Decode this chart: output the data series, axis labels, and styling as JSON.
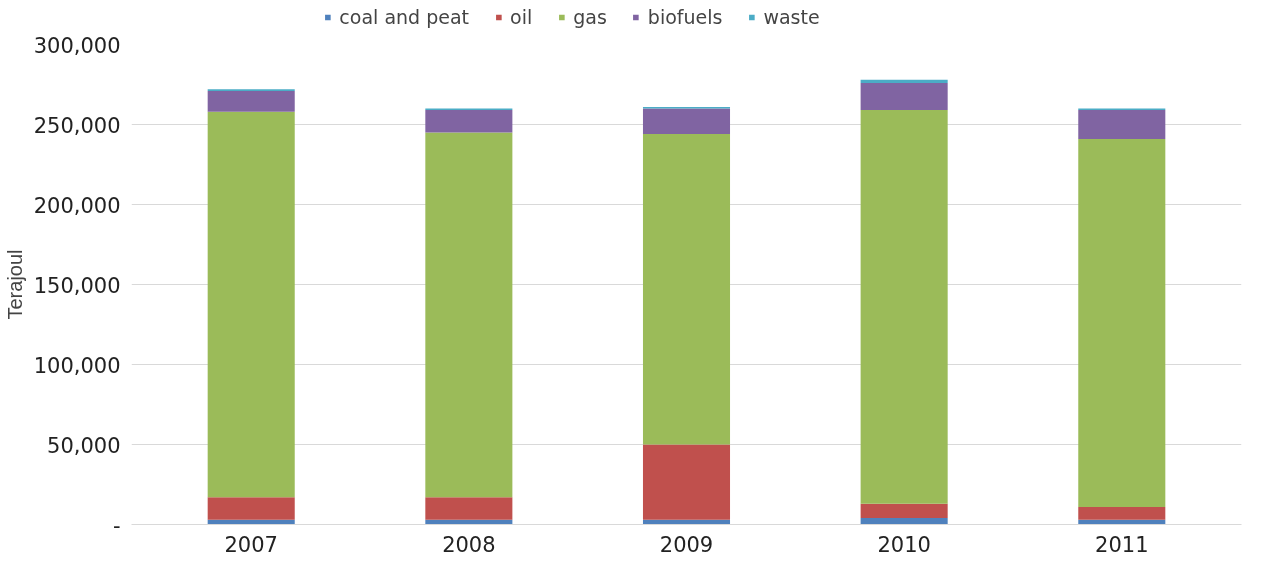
{
  "chart_data": {
    "type": "bar",
    "stacked": true,
    "ylabel": "Terajoul",
    "categories": [
      "2007",
      "2008",
      "2009",
      "2010",
      "2011"
    ],
    "series": [
      {
        "name": "coal and peat",
        "color": "#4f81bd",
        "values": [
          3000,
          3000,
          3000,
          4000,
          3000
        ]
      },
      {
        "name": "oil",
        "color": "#c0504d",
        "values": [
          14000,
          14000,
          47000,
          9000,
          8000
        ]
      },
      {
        "name": "gas",
        "color": "#9bbb59",
        "values": [
          241000,
          228000,
          194000,
          246000,
          230000
        ]
      },
      {
        "name": "biofuels",
        "color": "#8064a2",
        "values": [
          13000,
          14000,
          16000,
          17000,
          18000
        ]
      },
      {
        "name": "waste",
        "color": "#4bacc6",
        "values": [
          1000,
          1000,
          1000,
          2000,
          1000
        ]
      }
    ],
    "ylim": [
      0,
      300000
    ],
    "yticks": [
      {
        "value": 0,
        "label": "-"
      },
      {
        "value": 50000,
        "label": "50,000"
      },
      {
        "value": 100000,
        "label": "100,000"
      },
      {
        "value": 150000,
        "label": "150,000"
      },
      {
        "value": 200000,
        "label": "200,000"
      },
      {
        "value": 250000,
        "label": "250,000"
      },
      {
        "value": 300000,
        "label": "300,000"
      }
    ],
    "grid": "y",
    "legend": "top"
  }
}
